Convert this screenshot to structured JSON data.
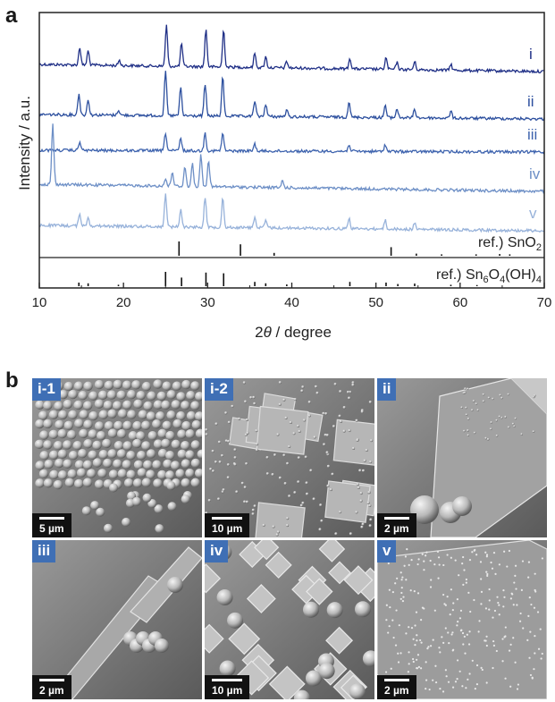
{
  "panels": {
    "a": "a",
    "b": "b"
  },
  "chart_data": {
    "type": "line",
    "xlabel_prefix": "2",
    "xlabel_theta": "θ",
    "xlabel_suffix": " / degree",
    "ylabel": "Intensity / a.u.",
    "xlim": [
      10,
      70
    ],
    "x_ticks": [
      10,
      20,
      30,
      40,
      50,
      60,
      70
    ],
    "series": [
      {
        "name": "i",
        "color": "#1f2f86",
        "peaks": [
          [
            14.8,
            20
          ],
          [
            15.8,
            16
          ],
          [
            19.5,
            6
          ],
          [
            25.1,
            46
          ],
          [
            26.9,
            26
          ],
          [
            29.8,
            42
          ],
          [
            31.9,
            42
          ],
          [
            35.6,
            16
          ],
          [
            36.9,
            12
          ],
          [
            39.4,
            7
          ],
          [
            46.9,
            12
          ],
          [
            51.2,
            13
          ],
          [
            52.5,
            8
          ],
          [
            54.6,
            9
          ],
          [
            58.9,
            7
          ]
        ]
      },
      {
        "name": "ii",
        "color": "#2c4f9e",
        "peaks": [
          [
            14.7,
            24
          ],
          [
            15.8,
            18
          ],
          [
            19.4,
            6
          ],
          [
            25.0,
            50
          ],
          [
            26.8,
            32
          ],
          [
            29.7,
            36
          ],
          [
            31.8,
            44
          ],
          [
            35.6,
            18
          ],
          [
            36.9,
            14
          ],
          [
            39.4,
            7
          ],
          [
            46.8,
            18
          ],
          [
            51.1,
            14
          ],
          [
            52.5,
            10
          ],
          [
            54.6,
            10
          ],
          [
            58.9,
            8
          ]
        ]
      },
      {
        "name": "iii",
        "color": "#3e63ae",
        "peaks": [
          [
            14.8,
            10
          ],
          [
            25.0,
            20
          ],
          [
            26.8,
            14
          ],
          [
            29.7,
            20
          ],
          [
            31.8,
            20
          ],
          [
            35.6,
            8
          ],
          [
            46.8,
            8
          ],
          [
            51.1,
            8
          ]
        ]
      },
      {
        "name": "iv",
        "color": "#6d8fc6",
        "peaks": [
          [
            11.6,
            68
          ],
          [
            25.0,
            8
          ],
          [
            25.8,
            16
          ],
          [
            27.3,
            22
          ],
          [
            28.2,
            26
          ],
          [
            29.2,
            36
          ],
          [
            30.1,
            30
          ],
          [
            38.9,
            8
          ]
        ]
      },
      {
        "name": "v",
        "color": "#97b2da",
        "peaks": [
          [
            14.8,
            14
          ],
          [
            15.8,
            10
          ],
          [
            25.0,
            36
          ],
          [
            26.8,
            20
          ],
          [
            29.7,
            34
          ],
          [
            31.8,
            34
          ],
          [
            35.6,
            12
          ],
          [
            36.9,
            8
          ],
          [
            46.8,
            12
          ],
          [
            51.1,
            10
          ],
          [
            54.6,
            7
          ]
        ]
      }
    ],
    "references": [
      {
        "label_main": "ref.) SnO",
        "label_sub": "2",
        "sticks": [
          [
            26.6,
            100
          ],
          [
            33.9,
            80
          ],
          [
            37.9,
            20
          ],
          [
            51.8,
            60
          ],
          [
            54.8,
            15
          ],
          [
            57.8,
            10
          ],
          [
            61.9,
            10
          ],
          [
            64.7,
            12
          ],
          [
            65.9,
            10
          ]
        ]
      },
      {
        "label_main": "ref.) Sn",
        "label_formula": [
          [
            "6",
            true
          ],
          [
            "O",
            false
          ],
          [
            "4",
            true
          ],
          [
            "(OH)",
            false
          ],
          [
            "4",
            true
          ]
        ],
        "sticks": [
          [
            14.7,
            25
          ],
          [
            15.8,
            20
          ],
          [
            19.4,
            10
          ],
          [
            25.0,
            100
          ],
          [
            26.9,
            60
          ],
          [
            29.8,
            95
          ],
          [
            31.9,
            90
          ],
          [
            35.6,
            30
          ],
          [
            36.9,
            20
          ],
          [
            39.4,
            12
          ],
          [
            46.9,
            30
          ],
          [
            51.2,
            25
          ],
          [
            52.6,
            15
          ],
          [
            54.6,
            18
          ],
          [
            58.9,
            10
          ],
          [
            62.0,
            8
          ]
        ]
      }
    ]
  },
  "sem_images": [
    {
      "tag": "i-1",
      "scale": "5 µm"
    },
    {
      "tag": "i-2",
      "scale": "10 µm"
    },
    {
      "tag": "ii",
      "scale": "2 µm"
    },
    {
      "tag": "iii",
      "scale": "2 µm"
    },
    {
      "tag": "iv",
      "scale": "10 µm"
    },
    {
      "tag": "v",
      "scale": "2 µm"
    }
  ]
}
